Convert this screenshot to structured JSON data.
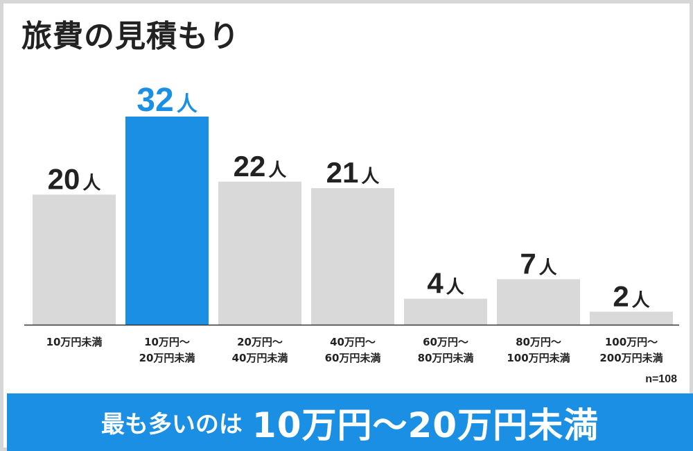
{
  "title": "旅費の見積もり",
  "sample_size": "n=108",
  "unit": "人",
  "banner": {
    "prefix": "最も多いのは",
    "highlight": "10万円〜20万円未満"
  },
  "colors": {
    "bar_default": "#d9d9d9",
    "bar_highlight": "#1a8fe3",
    "text_dark": "#222222",
    "banner_bg": "#1a8fe3"
  },
  "chart_data": {
    "type": "bar",
    "categories": [
      [
        "10万円未満"
      ],
      [
        "10万円〜",
        "20万円未満"
      ],
      [
        "20万円〜",
        "40万円未満"
      ],
      [
        "40万円〜",
        "60万円未満"
      ],
      [
        "60万円〜",
        "80万円未満"
      ],
      [
        "80万円〜",
        "100万円未満"
      ],
      [
        "100万円〜",
        "200万円未満"
      ]
    ],
    "values": [
      20,
      32,
      22,
      21,
      4,
      7,
      2
    ],
    "highlight_index": 1,
    "ylim": [
      0,
      32
    ],
    "grid": false,
    "legend": "none"
  }
}
